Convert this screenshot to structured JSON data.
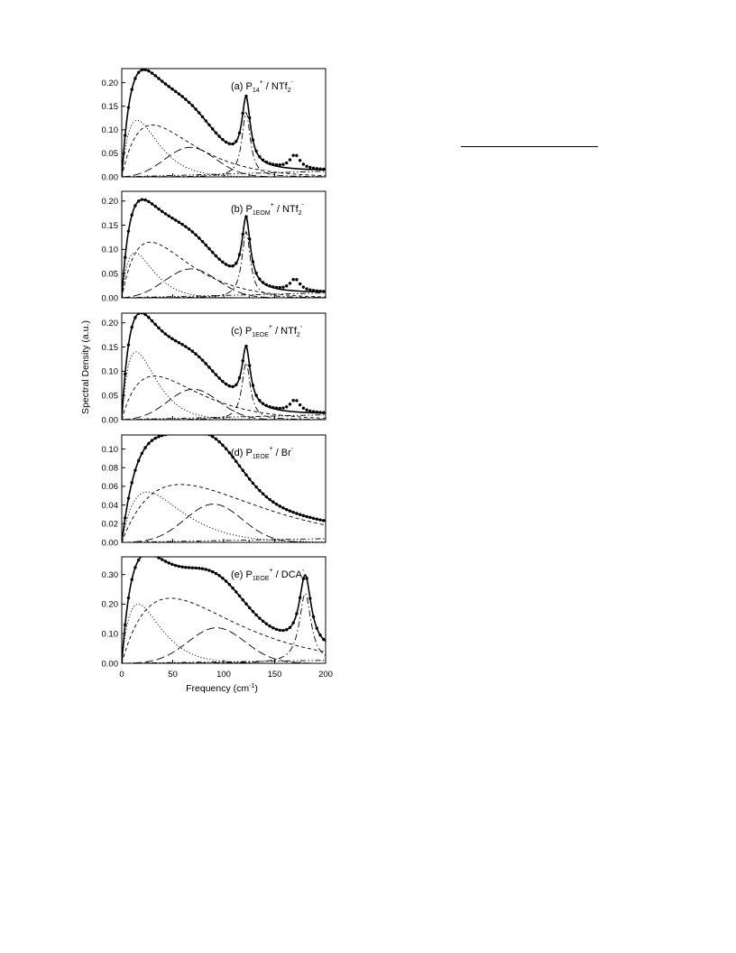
{
  "figure": {
    "ylabel": "Spectral Density (a.u.)",
    "xlabel_main": "Frequency (cm",
    "xlabel_sup": "-1",
    "xlabel_tail": ")",
    "x_ticks": [
      "0",
      "50",
      "100",
      "150",
      "200"
    ]
  },
  "chart_data": [
    {
      "type": "line",
      "panel": "a",
      "label_parts": {
        "prefix": "(a)",
        "cation": "P",
        "cation_sub": "14",
        "cation_sup": "+",
        "sep": "/",
        "anion": "NTf",
        "anion_sub": "2",
        "anion_sup": "-"
      },
      "xlim": [
        0,
        200
      ],
      "ylim": [
        0,
        0.23
      ],
      "y_ticks": [
        "0.00",
        "0.05",
        "0.10",
        "0.15",
        "0.20"
      ],
      "y_tick_values": [
        0,
        0.05,
        0.1,
        0.15,
        0.2
      ],
      "components": [
        {
          "style": "dotted",
          "shape": "ohmic",
          "amp": 0.12,
          "peak": 15
        },
        {
          "style": "dashed",
          "shape": "ohmic",
          "amp": 0.11,
          "peak": 30
        },
        {
          "style": "long-dash",
          "shape": "gauss",
          "amp": 0.063,
          "center": 67,
          "width": 25
        },
        {
          "style": "dash-dot",
          "shape": "lorentz",
          "amp": 0.14,
          "center": 122,
          "width": 5
        },
        {
          "style": "dash-dot-dot",
          "shape": "linear",
          "amp": 0.012
        }
      ],
      "data_peaks": [
        {
          "amp": 0.03,
          "center": 170,
          "width": 6
        }
      ]
    },
    {
      "type": "line",
      "panel": "b",
      "label_parts": {
        "prefix": "(b)",
        "cation": "P",
        "cation_sub": "1EOM",
        "cation_sup": "+",
        "sep": "/",
        "anion": "NTf",
        "anion_sub": "2",
        "anion_sup": "-"
      },
      "xlim": [
        0,
        200
      ],
      "ylim": [
        0,
        0.22
      ],
      "y_ticks": [
        "0.00",
        "0.05",
        "0.10",
        "0.15",
        "0.20"
      ],
      "y_tick_values": [
        0,
        0.05,
        0.1,
        0.15,
        0.2
      ],
      "components": [
        {
          "style": "dotted",
          "shape": "ohmic",
          "amp": 0.093,
          "peak": 13
        },
        {
          "style": "dashed",
          "shape": "ohmic",
          "amp": 0.115,
          "peak": 28
        },
        {
          "style": "long-dash",
          "shape": "gauss",
          "amp": 0.06,
          "center": 68,
          "width": 26
        },
        {
          "style": "dash-dot",
          "shape": "lorentz",
          "amp": 0.14,
          "center": 122,
          "width": 5
        },
        {
          "style": "dash-dot-dot",
          "shape": "linear",
          "amp": 0.01
        }
      ],
      "data_peaks": [
        {
          "amp": 0.025,
          "center": 170,
          "width": 6
        }
      ]
    },
    {
      "type": "line",
      "panel": "c",
      "label_parts": {
        "prefix": "(c)",
        "cation": "P",
        "cation_sub": "1EOE",
        "cation_sup": "+",
        "sep": "/",
        "anion": "NTf",
        "anion_sub": "2",
        "anion_sup": "-"
      },
      "xlim": [
        0,
        200
      ],
      "ylim": [
        0,
        0.22
      ],
      "y_ticks": [
        "0.00",
        "0.05",
        "0.10",
        "0.15",
        "0.20"
      ],
      "y_tick_values": [
        0,
        0.05,
        0.1,
        0.15,
        0.2
      ],
      "components": [
        {
          "style": "dotted",
          "shape": "ohmic",
          "amp": 0.14,
          "peak": 14
        },
        {
          "style": "dashed",
          "shape": "ohmic",
          "amp": 0.09,
          "peak": 32
        },
        {
          "style": "long-dash",
          "shape": "gauss",
          "amp": 0.063,
          "center": 70,
          "width": 25
        },
        {
          "style": "dash-dot",
          "shape": "lorentz",
          "amp": 0.12,
          "center": 122,
          "width": 5
        },
        {
          "style": "dash-dot-dot",
          "shape": "linear",
          "amp": 0.01
        }
      ],
      "data_peaks": [
        {
          "amp": 0.025,
          "center": 170,
          "width": 6
        }
      ]
    },
    {
      "type": "line",
      "panel": "d",
      "label_parts": {
        "prefix": "(d)",
        "cation": "P",
        "cation_sub": "1EOE",
        "cation_sup": "+",
        "sep": "/",
        "anion": "Br",
        "anion_sub": "",
        "anion_sup": "-"
      },
      "xlim": [
        0,
        200
      ],
      "ylim": [
        0,
        0.115
      ],
      "y_ticks": [
        "0.00",
        "0.02",
        "0.04",
        "0.06",
        "0.08",
        "0.10"
      ],
      "y_tick_values": [
        0,
        0.02,
        0.04,
        0.06,
        0.08,
        0.1
      ],
      "components": [
        {
          "style": "dotted",
          "shape": "ohmic",
          "amp": 0.054,
          "peak": 25
        },
        {
          "style": "dashed",
          "shape": "ohmic",
          "amp": 0.062,
          "peak": 58
        },
        {
          "style": "long-dash",
          "shape": "gauss",
          "amp": 0.041,
          "center": 90,
          "width": 28
        },
        {
          "style": "dash-dot-dot",
          "shape": "linear",
          "amp": 0.004
        }
      ],
      "data_peaks": []
    },
    {
      "type": "line",
      "panel": "e",
      "label_parts": {
        "prefix": "(e)",
        "cation": "P",
        "cation_sub": "1EOE",
        "cation_sup": "+",
        "sep": "/",
        "anion": "DCA",
        "anion_sub": "",
        "anion_sup": "-"
      },
      "xlim": [
        0,
        200
      ],
      "ylim": [
        0,
        0.36
      ],
      "y_ticks": [
        "0.00",
        "0.10",
        "0.20",
        "0.30"
      ],
      "y_tick_values": [
        0,
        0.1,
        0.2,
        0.3
      ],
      "components": [
        {
          "style": "dotted",
          "shape": "ohmic",
          "amp": 0.2,
          "peak": 16
        },
        {
          "style": "dashed",
          "shape": "ohmic",
          "amp": 0.22,
          "peak": 48
        },
        {
          "style": "long-dash",
          "shape": "gauss",
          "amp": 0.12,
          "center": 93,
          "width": 28
        },
        {
          "style": "dash-dot",
          "shape": "lorentz",
          "amp": 0.24,
          "center": 180,
          "width": 7
        },
        {
          "style": "dash-dot-dot",
          "shape": "linear",
          "amp": 0.01
        }
      ],
      "data_peaks": []
    }
  ]
}
